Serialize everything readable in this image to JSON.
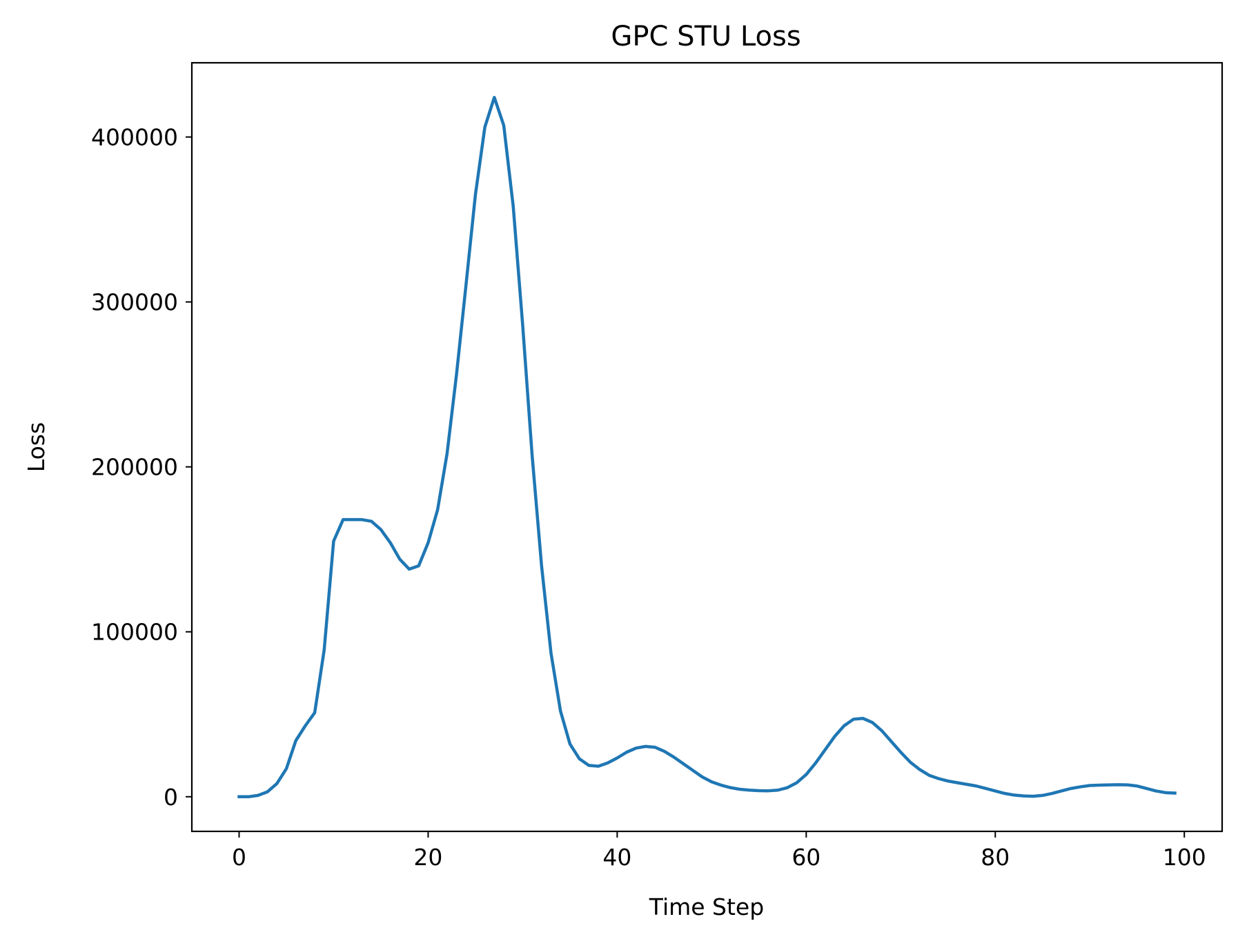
{
  "chart_data": {
    "type": "line",
    "title": "GPC STU Loss",
    "xlabel": "Time Step",
    "ylabel": "Loss",
    "xlim": [
      -5,
      104
    ],
    "ylim": [
      -21000,
      445000
    ],
    "xticks": [
      0,
      20,
      40,
      60,
      80,
      100
    ],
    "yticks": [
      0,
      100000,
      200000,
      300000,
      400000
    ],
    "xtick_labels": [
      "0",
      "20",
      "40",
      "60",
      "80",
      "100"
    ],
    "ytick_labels": [
      "0",
      "100000",
      "200000",
      "300000",
      "400000"
    ],
    "grid": false,
    "line_color": "#1f77b4",
    "series": [
      {
        "x": [
          0,
          1,
          2,
          3,
          4,
          5,
          6,
          7,
          8,
          9,
          10,
          11,
          12,
          13,
          14,
          15,
          16,
          17,
          18,
          19,
          20,
          21,
          22,
          23,
          24,
          25,
          26,
          27,
          28,
          29,
          30,
          31,
          32,
          33,
          34,
          35,
          36,
          37,
          38,
          39,
          40,
          41,
          42,
          43,
          44,
          45,
          46,
          47,
          48,
          49,
          50,
          51,
          52,
          53,
          54,
          55,
          56,
          57,
          58,
          59,
          60,
          61,
          62,
          63,
          64,
          65,
          66,
          67,
          68,
          69,
          70,
          71,
          72,
          73,
          74,
          75,
          76,
          77,
          78,
          79,
          80,
          81,
          82,
          83,
          84,
          85,
          86,
          87,
          88,
          89,
          90,
          91,
          92,
          93,
          94,
          95,
          96,
          97,
          98,
          99
        ],
        "values": [
          0,
          0,
          800,
          3000,
          8000,
          17000,
          34000,
          43000,
          51000,
          89000,
          155000,
          168000,
          168000,
          168000,
          167000,
          162000,
          154000,
          144000,
          138000,
          140000,
          154000,
          174000,
          208000,
          256000,
          310000,
          365000,
          406000,
          424000,
          407000,
          358000,
          286000,
          207000,
          140000,
          87000,
          52000,
          32000,
          23000,
          19000,
          18500,
          20500,
          23500,
          27000,
          29500,
          30500,
          30000,
          27500,
          24000,
          20000,
          16000,
          12000,
          9000,
          7000,
          5500,
          4500,
          4000,
          3700,
          3600,
          4000,
          5500,
          8500,
          13500,
          20500,
          28500,
          36500,
          43000,
          47000,
          47500,
          45000,
          40000,
          33500,
          27000,
          21000,
          16500,
          13000,
          11000,
          9500,
          8500,
          7500,
          6500,
          5000,
          3500,
          2000,
          1000,
          500,
          300,
          800,
          2000,
          3500,
          5000,
          6000,
          6800,
          7000,
          7200,
          7300,
          7200,
          6500,
          5000,
          3500,
          2500,
          2200
        ]
      }
    ]
  }
}
